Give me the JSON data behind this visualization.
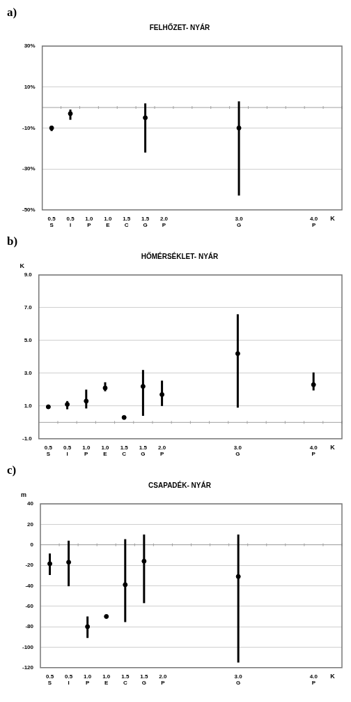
{
  "chart_data": [
    {
      "type": "scatter",
      "title": "FELHŐZET- NYÁR",
      "xlabel": "K",
      "annotations": [
        "a)"
      ],
      "categories": [
        "0.5\nS",
        "0.5\nI",
        "1.0\nP",
        "1.0\nE",
        "1.5\nC",
        "1.5\nG",
        "2.0\nP",
        null,
        null,
        null,
        "3.0\nG",
        null,
        null,
        null,
        "4.0\nP",
        null
      ],
      "values": [
        -10,
        -3,
        null,
        null,
        null,
        -5,
        null,
        null,
        null,
        null,
        -10,
        null,
        null,
        null,
        null,
        null
      ],
      "errors": [
        [
          -11.5,
          -9
        ],
        [
          -6,
          -1
        ],
        null,
        null,
        null,
        [
          -22,
          2
        ],
        null,
        null,
        null,
        null,
        [
          -43,
          3
        ],
        null,
        null,
        null,
        null,
        null
      ],
      "color": "#000000",
      "marker": "circle",
      "ylim": [
        -50,
        30
      ],
      "yticks": [
        {
          "value": -50,
          "label": "-50%"
        },
        {
          "value": -30,
          "label": "-30%"
        },
        {
          "value": -10,
          "label": "-10%"
        },
        {
          "value": 10,
          "label": "10%"
        },
        {
          "value": 30,
          "label": "30%"
        }
      ],
      "grid": "y",
      "ref_lines": [
        {
          "axis": "y",
          "value": 0,
          "color": "#a0a0a0"
        }
      ]
    },
    {
      "type": "scatter",
      "title": "HŐMÉRSÉKLET- NYÁR",
      "ylabel": "K",
      "xlabel": "K",
      "annotations": [
        "b)"
      ],
      "categories": [
        "0.5\nS",
        "0.5\nI",
        "1.0\nP",
        "1.0\nE",
        "1.5\nC",
        "1.5\nG",
        "2.0\nP",
        null,
        null,
        null,
        "3.0\nG",
        null,
        null,
        null,
        "4.0\nP",
        null
      ],
      "values": [
        0.95,
        1.1,
        1.3,
        2.1,
        0.3,
        2.2,
        1.7,
        null,
        null,
        null,
        4.2,
        null,
        null,
        null,
        2.3,
        null
      ],
      "errors": [
        null,
        [
          0.8,
          1.3
        ],
        [
          0.85,
          2.0
        ],
        [
          1.9,
          2.45
        ],
        null,
        [
          0.4,
          3.2
        ],
        [
          1.0,
          2.55
        ],
        null,
        null,
        null,
        [
          0.9,
          6.6
        ],
        null,
        null,
        null,
        [
          1.95,
          3.05
        ],
        null
      ],
      "color": "#000000",
      "marker": "circle",
      "ylim": [
        -1,
        9
      ],
      "yticks": [
        {
          "value": -1,
          "label": "-1.0"
        },
        {
          "value": 1,
          "label": "1.0"
        },
        {
          "value": 3,
          "label": "3.0"
        },
        {
          "value": 5,
          "label": "5.0"
        },
        {
          "value": 7,
          "label": "7.0"
        },
        {
          "value": 9,
          "label": "9.0"
        }
      ],
      "grid": "y",
      "ref_lines": [
        {
          "axis": "y",
          "value": 0,
          "color": "#a0a0a0"
        }
      ]
    },
    {
      "type": "scatter",
      "title": "CSAPADÉK- NYÁR",
      "ylabel": "m",
      "xlabel": "K",
      "annotations": [
        "c)"
      ],
      "categories": [
        "0.5\nS",
        "0.5\nI",
        "1.0\nP",
        "1.0\nE",
        "1.5\nC",
        "1.5\nG",
        "2.0\nP",
        null,
        null,
        null,
        "3.0\nG",
        null,
        null,
        null,
        "4.0\nP",
        null
      ],
      "values": [
        -18.5,
        -17,
        -80,
        -70,
        -39,
        -16,
        null,
        null,
        null,
        null,
        -31,
        null,
        null,
        null,
        null,
        null
      ],
      "errors": [
        [
          -29.5,
          -8.5
        ],
        [
          -40.5,
          4
        ],
        [
          -91,
          -70
        ],
        null,
        [
          -75.5,
          5.5
        ],
        [
          -57,
          10
        ],
        null,
        null,
        null,
        null,
        [
          -115,
          10
        ],
        null,
        null,
        null,
        null,
        null
      ],
      "color": "#000000",
      "marker": "circle",
      "ylim": [
        -120,
        40
      ],
      "yticks": [
        -120,
        -100,
        -80,
        -60,
        -40,
        -20,
        0,
        20,
        40
      ],
      "grid": "y",
      "ref_lines": [
        {
          "axis": "y",
          "value": 0,
          "color": "#a0a0a0"
        }
      ]
    }
  ]
}
